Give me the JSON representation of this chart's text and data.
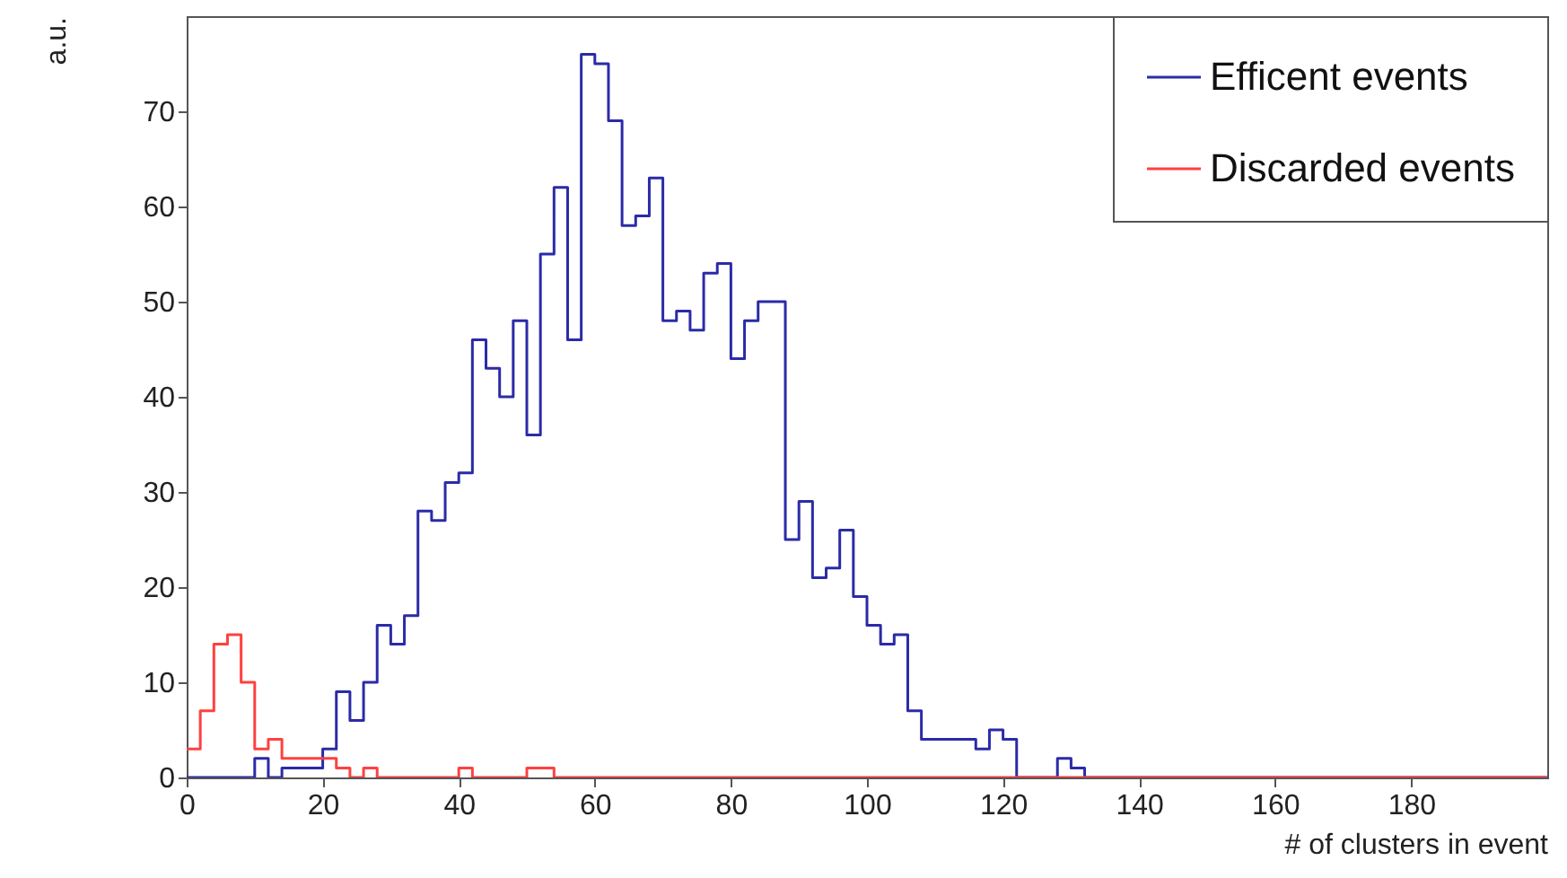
{
  "chart_data": {
    "type": "histogram",
    "xlabel": "# of clusters in event",
    "ylabel": "a.u.",
    "bins": [
      0,
      2,
      4,
      6,
      8,
      10,
      12,
      14,
      16,
      18,
      20,
      22,
      24,
      26,
      28,
      30,
      32,
      34,
      36,
      38,
      40,
      42,
      44,
      46,
      48,
      50,
      52,
      54,
      56,
      58,
      60,
      62,
      64,
      66,
      68,
      70,
      72,
      74,
      76,
      78,
      80,
      82,
      84,
      86,
      88,
      90,
      92,
      94,
      96,
      98,
      100,
      102,
      104,
      106,
      108,
      110,
      112,
      114,
      116,
      118,
      120,
      122,
      124,
      126,
      128,
      130,
      132,
      134,
      136,
      138,
      140,
      142,
      144,
      146,
      148,
      150,
      152,
      154,
      156,
      158,
      160,
      162,
      164,
      166,
      168,
      170,
      172,
      174,
      176,
      178,
      180,
      182,
      184,
      186,
      188,
      190,
      192,
      194,
      196,
      198,
      200
    ],
    "series": [
      {
        "name": "Efficent events",
        "color": "#2b2ba8",
        "values": [
          0,
          0,
          0,
          0,
          0,
          2,
          0,
          1,
          1,
          1,
          3,
          9,
          6,
          10,
          16,
          14,
          17,
          28,
          27,
          31,
          32,
          46,
          43,
          40,
          48,
          36,
          55,
          62,
          46,
          76,
          75,
          69,
          58,
          59,
          63,
          48,
          49,
          47,
          53,
          54,
          44,
          48,
          50,
          50,
          25,
          29,
          21,
          22,
          26,
          19,
          16,
          14,
          15,
          7,
          4,
          4,
          4,
          4,
          3,
          5,
          4,
          0,
          0,
          0,
          2,
          1,
          0,
          0,
          0,
          0,
          0,
          0,
          0,
          0,
          0,
          0,
          0,
          0,
          0,
          0,
          0,
          0,
          0,
          0,
          0,
          0,
          0,
          0,
          0,
          0,
          0,
          0,
          0,
          0,
          0,
          0,
          0,
          0,
          0,
          0
        ]
      },
      {
        "name": "Discarded events",
        "color": "#ff4040",
        "values": [
          3,
          7,
          14,
          15,
          10,
          3,
          4,
          2,
          2,
          2,
          2,
          1,
          0,
          1,
          0,
          0,
          0,
          0,
          0,
          0,
          1,
          0,
          0,
          0,
          0,
          1,
          1,
          0,
          0,
          0,
          0,
          0,
          0,
          0,
          0,
          0,
          0,
          0,
          0,
          0,
          0,
          0,
          0,
          0,
          0,
          0,
          0,
          0,
          0,
          0,
          0,
          0,
          0,
          0,
          0,
          0,
          0,
          0,
          0,
          0,
          0,
          0,
          0,
          0,
          0,
          0,
          0,
          0,
          0,
          0,
          0,
          0,
          0,
          0,
          0,
          0,
          0,
          0,
          0,
          0,
          0,
          0,
          0,
          0,
          0,
          0,
          0,
          0,
          0,
          0,
          0,
          0,
          0,
          0,
          0,
          0,
          0,
          0,
          0,
          0
        ]
      }
    ],
    "xlim": [
      0,
      200
    ],
    "xticks": [
      0,
      20,
      40,
      60,
      80,
      100,
      120,
      140,
      160,
      180
    ],
    "ylim": [
      0,
      80
    ],
    "yticks": [
      0,
      10,
      20,
      30,
      40,
      50,
      60,
      70
    ],
    "legend": "top right",
    "grid": false
  }
}
